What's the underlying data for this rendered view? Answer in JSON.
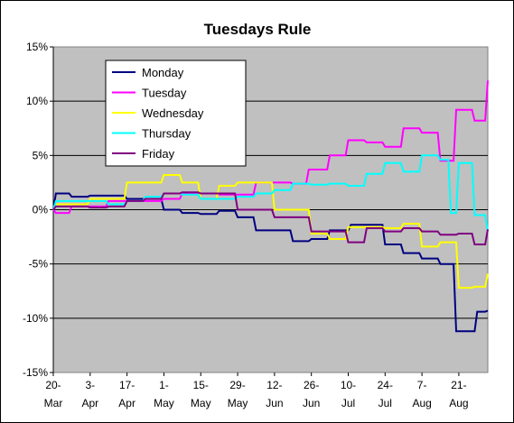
{
  "chart_data": {
    "type": "line",
    "title": "Tuesdays Rule",
    "xlabel": "",
    "ylabel": "",
    "ylim": [
      -15,
      15
    ],
    "yticks": [
      15,
      10,
      5,
      0,
      -5,
      -10,
      -15
    ],
    "ytick_labels": [
      "15%",
      "10%",
      "5%",
      "0%",
      "-5%",
      "-10%",
      "-15%"
    ],
    "x_range": [
      0,
      165
    ],
    "xticks": [
      0,
      14,
      28,
      42,
      56,
      70,
      84,
      98,
      112,
      126,
      140,
      154
    ],
    "xtick_labels": [
      [
        "20-",
        "Mar"
      ],
      [
        "3-",
        "Apr"
      ],
      [
        "17-",
        "Apr"
      ],
      [
        "1-",
        "May"
      ],
      [
        "15-",
        "May"
      ],
      [
        "29-",
        "May"
      ],
      [
        "12-",
        "Jun"
      ],
      [
        "26-",
        "Jun"
      ],
      [
        "10-",
        "Jul"
      ],
      [
        "24-",
        "Jul"
      ],
      [
        "7-",
        "Aug"
      ],
      [
        "21-",
        "Aug"
      ]
    ],
    "grid": "horizontal",
    "legend_position": "top-left",
    "background_color": "#C0C0C0",
    "series": [
      {
        "name": "Monday",
        "color": "#000080",
        "x": [
          0,
          1,
          6,
          7,
          13,
          14,
          27,
          28,
          41,
          42,
          48,
          49,
          55,
          56,
          62,
          63,
          69,
          70,
          76,
          77,
          82,
          83,
          90,
          91,
          97,
          98,
          104,
          105,
          112,
          113,
          118,
          119,
          125,
          126,
          132,
          133,
          139,
          140,
          146,
          147,
          152,
          153,
          160,
          161,
          164,
          165
        ],
        "y": [
          0,
          1.5,
          1.5,
          1.2,
          1.2,
          1.3,
          1.3,
          1.0,
          1.0,
          0.0,
          0.0,
          -0.3,
          -0.3,
          -0.4,
          -0.4,
          -0.1,
          -0.1,
          -0.7,
          -0.7,
          -1.9,
          -1.9,
          -1.9,
          -1.9,
          -2.9,
          -2.9,
          -2.7,
          -2.7,
          -1.9,
          -1.9,
          -1.4,
          -1.4,
          -1.4,
          -1.4,
          -3.2,
          -3.2,
          -4.0,
          -4.0,
          -4.5,
          -4.5,
          -5.0,
          -5.0,
          -11.2,
          -11.2,
          -9.4,
          -9.4,
          -9.3
        ]
      },
      {
        "name": "Tuesday",
        "color": "#FF00FF",
        "x": [
          0,
          1,
          6,
          7,
          13,
          14,
          20,
          21,
          27,
          28,
          34,
          35,
          41,
          42,
          48,
          49,
          55,
          56,
          62,
          63,
          69,
          70,
          76,
          77,
          83,
          84,
          90,
          91,
          96,
          97,
          104,
          105,
          111,
          112,
          118,
          119,
          125,
          126,
          132,
          133,
          139,
          140,
          146,
          147,
          152,
          153,
          159,
          160,
          164,
          165
        ],
        "y": [
          0,
          -0.3,
          -0.3,
          0.3,
          0.3,
          0.3,
          0.3,
          0.8,
          0.8,
          0.8,
          0.8,
          0.8,
          0.8,
          1.0,
          1.0,
          1.5,
          1.5,
          1.5,
          1.5,
          1.4,
          1.4,
          1.4,
          1.4,
          2.5,
          2.5,
          2.5,
          2.5,
          2.4,
          2.4,
          3.7,
          3.7,
          5.0,
          5.0,
          6.4,
          6.4,
          6.2,
          6.2,
          5.8,
          5.8,
          7.5,
          7.5,
          7.1,
          7.1,
          4.5,
          4.5,
          9.2,
          9.2,
          8.2,
          8.2,
          11.9
        ]
      },
      {
        "name": "Wednesday",
        "color": "#FFFF00",
        "x": [
          0,
          1,
          6,
          7,
          13,
          14,
          20,
          21,
          27,
          28,
          34,
          35,
          41,
          42,
          48,
          49,
          55,
          56,
          62,
          63,
          69,
          70,
          76,
          77,
          83,
          84,
          90,
          91,
          97,
          98,
          104,
          105,
          111,
          112,
          118,
          119,
          125,
          126,
          132,
          133,
          139,
          140,
          146,
          147,
          153,
          154,
          159,
          160,
          164,
          165
        ],
        "y": [
          0,
          0.5,
          0.5,
          0.5,
          0.5,
          1.0,
          1.0,
          1.0,
          1.0,
          2.5,
          2.5,
          2.5,
          2.5,
          3.2,
          3.2,
          2.5,
          2.5,
          1.0,
          1.0,
          2.2,
          2.2,
          2.5,
          2.5,
          2.5,
          2.5,
          0.0,
          0.0,
          0.0,
          0.0,
          -2.2,
          -2.2,
          -2.7,
          -2.7,
          -1.6,
          -1.6,
          -1.6,
          -1.6,
          -1.7,
          -1.7,
          -1.3,
          -1.3,
          -3.4,
          -3.4,
          -3.0,
          -3.0,
          -7.2,
          -7.2,
          -7.1,
          -7.1,
          -5.9
        ]
      },
      {
        "name": "Thursday",
        "color": "#00FFFF",
        "x": [
          0,
          1,
          6,
          7,
          13,
          14,
          20,
          21,
          27,
          28,
          34,
          35,
          41,
          42,
          48,
          49,
          55,
          56,
          62,
          63,
          69,
          70,
          76,
          77,
          83,
          84,
          90,
          91,
          97,
          98,
          104,
          105,
          111,
          112,
          118,
          119,
          125,
          126,
          132,
          133,
          139,
          140,
          146,
          147,
          150,
          151,
          153,
          154,
          159,
          160,
          164,
          165
        ],
        "y": [
          0,
          0.8,
          0.8,
          0.8,
          0.8,
          0.8,
          0.8,
          0.5,
          0.5,
          0.8,
          0.8,
          1.2,
          1.2,
          1.5,
          1.5,
          1.4,
          1.4,
          1.0,
          1.0,
          1.0,
          1.0,
          1.2,
          1.2,
          1.5,
          1.5,
          1.8,
          1.8,
          2.4,
          2.4,
          2.3,
          2.3,
          2.4,
          2.4,
          2.2,
          2.2,
          3.3,
          3.3,
          4.3,
          4.3,
          3.5,
          3.5,
          5.0,
          5.0,
          4.6,
          4.6,
          -0.3,
          -0.3,
          4.3,
          4.3,
          -0.5,
          -0.5,
          -2.0
        ]
      },
      {
        "name": "Friday",
        "color": "#800080",
        "x": [
          0,
          1,
          6,
          7,
          13,
          14,
          20,
          21,
          27,
          28,
          34,
          35,
          41,
          42,
          48,
          49,
          55,
          56,
          62,
          63,
          69,
          70,
          76,
          77,
          83,
          84,
          90,
          91,
          97,
          98,
          104,
          105,
          111,
          112,
          118,
          119,
          125,
          126,
          132,
          133,
          139,
          140,
          146,
          147,
          153,
          154,
          159,
          160,
          164,
          165
        ],
        "y": [
          0,
          0.3,
          0.3,
          0.3,
          0.3,
          0.2,
          0.2,
          0.3,
          0.3,
          0.8,
          0.8,
          1.0,
          1.0,
          1.5,
          1.5,
          1.6,
          1.6,
          1.5,
          1.5,
          1.5,
          1.5,
          0.0,
          0.0,
          0.0,
          0.0,
          -0.7,
          -0.7,
          -0.7,
          -0.7,
          -2.0,
          -2.0,
          -2.0,
          -2.0,
          -3.0,
          -3.0,
          -1.7,
          -1.7,
          -2.0,
          -2.0,
          -1.7,
          -1.7,
          -2.0,
          -2.0,
          -2.3,
          -2.3,
          -2.2,
          -2.2,
          -3.2,
          -3.2,
          -1.8
        ]
      }
    ]
  }
}
